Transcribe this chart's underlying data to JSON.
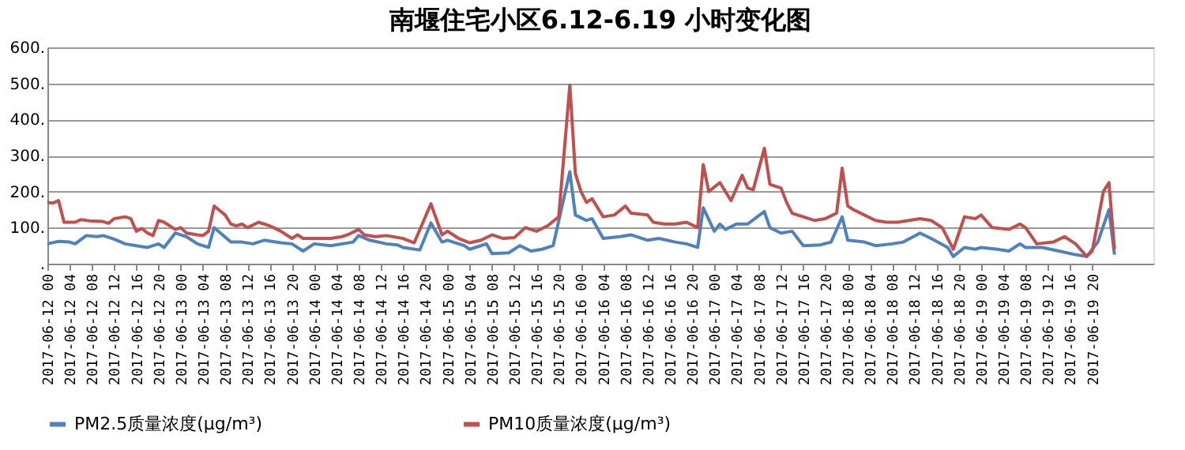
{
  "chart_data": {
    "type": "line",
    "title": "南堰住宅小区6.12-6.19 小时变化图",
    "xlim": [
      "2017-06-12T00:00",
      "2017-06-20T07:00"
    ],
    "xticks": [
      {
        "value": "2017-06-12T00:00",
        "label": "2017-06-12 00"
      },
      {
        "value": "2017-06-12T04:00",
        "label": "2017-06-12 04"
      },
      {
        "value": "2017-06-12T08:00",
        "label": "2017-06-12 08"
      },
      {
        "value": "2017-06-12T12:00",
        "label": "2017-06-12 12"
      },
      {
        "value": "2017-06-12T16:00",
        "label": "2017-06-12 16"
      },
      {
        "value": "2017-06-12T20:00",
        "label": "2017-06-12 20"
      },
      {
        "value": "2017-06-13T00:00",
        "label": "2017-06-13 00"
      },
      {
        "value": "2017-06-13T04:00",
        "label": "2017-06-13 04"
      },
      {
        "value": "2017-06-13T08:00",
        "label": "2017-06-13 08"
      },
      {
        "value": "2017-06-13T12:00",
        "label": "2017-06-13 12"
      },
      {
        "value": "2017-06-13T16:00",
        "label": "2017-06-13 16"
      },
      {
        "value": "2017-06-13T20:00",
        "label": "2017-06-13 20"
      },
      {
        "value": "2017-06-14T00:00",
        "label": "2017-06-14 00"
      },
      {
        "value": "2017-06-14T04:00",
        "label": "2017-06-14 04"
      },
      {
        "value": "2017-06-14T08:00",
        "label": "2017-06-14 08"
      },
      {
        "value": "2017-06-14T12:00",
        "label": "2017-06-14 12"
      },
      {
        "value": "2017-06-14T16:00",
        "label": "2017-06-14 16"
      },
      {
        "value": "2017-06-14T20:00",
        "label": "2017-06-14 20"
      },
      {
        "value": "2017-06-15T00:00",
        "label": "2017-06-15 00"
      },
      {
        "value": "2017-06-15T04:00",
        "label": "2017-06-15 04"
      },
      {
        "value": "2017-06-15T08:00",
        "label": "2017-06-15 08"
      },
      {
        "value": "2017-06-15T12:00",
        "label": "2017-06-15 12"
      },
      {
        "value": "2017-06-15T16:00",
        "label": "2017-06-15 16"
      },
      {
        "value": "2017-06-15T20:00",
        "label": "2017-06-15 20"
      },
      {
        "value": "2017-06-16T00:00",
        "label": "2017-06-16 00"
      },
      {
        "value": "2017-06-16T04:00",
        "label": "2017-06-16 04"
      },
      {
        "value": "2017-06-16T08:00",
        "label": "2017-06-16 08"
      },
      {
        "value": "2017-06-16T12:00",
        "label": "2017-06-16 12"
      },
      {
        "value": "2017-06-16T16:00",
        "label": "2017-06-16 16"
      },
      {
        "value": "2017-06-16T20:00",
        "label": "2017-06-16 20"
      },
      {
        "value": "2017-06-17T00:00",
        "label": "2017-06-17 00"
      },
      {
        "value": "2017-06-17T04:00",
        "label": "2017-06-17 04"
      },
      {
        "value": "2017-06-17T08:00",
        "label": "2017-06-17 08"
      },
      {
        "value": "2017-06-17T12:00",
        "label": "2017-06-17 12"
      },
      {
        "value": "2017-06-17T16:00",
        "label": "2017-06-17 16"
      },
      {
        "value": "2017-06-17T20:00",
        "label": "2017-06-17 20"
      },
      {
        "value": "2017-06-18T00:00",
        "label": "2017-06-18 00"
      },
      {
        "value": "2017-06-18T04:00",
        "label": "2017-06-18 04"
      },
      {
        "value": "2017-06-18T08:00",
        "label": "2017-06-18 08"
      },
      {
        "value": "2017-06-18T12:00",
        "label": "2017-06-18 12"
      },
      {
        "value": "2017-06-18T16:00",
        "label": "2017-06-18 16"
      },
      {
        "value": "2017-06-18T20:00",
        "label": "2017-06-18 20"
      },
      {
        "value": "2017-06-19T00:00",
        "label": "2017-06-19 00"
      },
      {
        "value": "2017-06-19T04:00",
        "label": "2017-06-19 04"
      },
      {
        "value": "2017-06-19T08:00",
        "label": "2017-06-19 08"
      },
      {
        "value": "2017-06-19T12:00",
        "label": "2017-06-19 12"
      },
      {
        "value": "2017-06-19T16:00",
        "label": "2017-06-19 16"
      },
      {
        "value": "2017-06-19T20:00",
        "label": "2017-06-19 20"
      }
    ],
    "ylim": [
      0,
      600
    ],
    "yticks": [
      {
        "value": 0,
        "label": "."
      },
      {
        "value": 100,
        "label": "100."
      },
      {
        "value": 200,
        "label": "200."
      },
      {
        "value": 300,
        "label": "300."
      },
      {
        "value": 400,
        "label": "400."
      },
      {
        "value": 500,
        "label": "500."
      },
      {
        "value": 600,
        "label": "600."
      }
    ],
    "grid": "y",
    "legend": "bottom",
    "line_style": "solid",
    "marker": "none",
    "series": [
      {
        "name": "PM2.5质量浓度(µg/m³)",
        "color": "#4f81bd",
        "x": [
          "2017-06-12T00:00",
          "2017-06-12T02:00",
          "2017-06-12T04:00",
          "2017-06-12T05:00",
          "2017-06-12T07:00",
          "2017-06-12T09:00",
          "2017-06-12T10:00",
          "2017-06-12T12:00",
          "2017-06-12T14:00",
          "2017-06-12T16:00",
          "2017-06-12T18:00",
          "2017-06-12T20:00",
          "2017-06-12T21:00",
          "2017-06-12T23:00",
          "2017-06-13T01:00",
          "2017-06-13T03:00",
          "2017-06-13T05:00",
          "2017-06-13T06:00",
          "2017-06-13T09:00",
          "2017-06-13T11:00",
          "2017-06-13T13:00",
          "2017-06-13T15:00",
          "2017-06-13T18:00",
          "2017-06-13T20:00",
          "2017-06-13T22:00",
          "2017-06-14T00:00",
          "2017-06-14T03:00",
          "2017-06-14T07:00",
          "2017-06-14T08:00",
          "2017-06-14T10:00",
          "2017-06-14T13:00",
          "2017-06-14T15:00",
          "2017-06-14T16:00",
          "2017-06-14T19:00",
          "2017-06-14T21:00",
          "2017-06-14T23:00",
          "2017-06-15T00:00",
          "2017-06-15T03:00",
          "2017-06-15T04:00",
          "2017-06-15T07:00",
          "2017-06-15T08:00",
          "2017-06-15T11:00",
          "2017-06-15T13:00",
          "2017-06-15T15:00",
          "2017-06-15T17:00",
          "2017-06-15T19:00",
          "2017-06-15T22:00",
          "2017-06-15T23:00",
          "2017-06-16T01:00",
          "2017-06-16T02:00",
          "2017-06-16T04:00",
          "2017-06-16T07:00",
          "2017-06-16T09:00",
          "2017-06-16T12:00",
          "2017-06-16T14:00",
          "2017-06-16T17:00",
          "2017-06-16T19:00",
          "2017-06-16T21:00",
          "2017-06-16T22:00",
          "2017-06-17T00:00",
          "2017-06-17T01:00",
          "2017-06-17T02:00",
          "2017-06-17T04:00",
          "2017-06-17T06:00",
          "2017-06-17T09:00",
          "2017-06-17T10:00",
          "2017-06-17T12:00",
          "2017-06-17T14:00",
          "2017-06-17T16:00",
          "2017-06-17T19:00",
          "2017-06-17T21:00",
          "2017-06-17T23:00",
          "2017-06-18T00:00",
          "2017-06-18T03:00",
          "2017-06-18T05:00",
          "2017-06-18T08:00",
          "2017-06-18T10:00",
          "2017-06-18T13:00",
          "2017-06-18T15:00",
          "2017-06-18T18:00",
          "2017-06-18T19:00",
          "2017-06-18T21:00",
          "2017-06-18T23:00",
          "2017-06-19T00:00",
          "2017-06-19T03:00",
          "2017-06-19T05:00",
          "2017-06-19T07:00",
          "2017-06-19T08:00",
          "2017-06-19T11:00",
          "2017-06-19T14:00",
          "2017-06-19T17:00",
          "2017-06-19T19:00",
          "2017-06-19T21:00",
          "2017-06-19T23:00",
          "2017-06-20T00:00"
        ],
        "values": [
          55,
          62,
          60,
          55,
          78,
          75,
          78,
          68,
          55,
          50,
          45,
          55,
          45,
          85,
          75,
          55,
          45,
          100,
          60,
          60,
          55,
          65,
          58,
          55,
          35,
          55,
          50,
          60,
          78,
          65,
          55,
          52,
          45,
          38,
          113,
          60,
          65,
          50,
          40,
          55,
          28,
          30,
          50,
          35,
          40,
          50,
          255,
          135,
          120,
          125,
          70,
          75,
          80,
          65,
          70,
          60,
          55,
          45,
          155,
          90,
          110,
          95,
          110,
          110,
          145,
          100,
          85,
          90,
          50,
          52,
          60,
          130,
          65,
          60,
          50,
          55,
          60,
          85,
          70,
          45,
          20,
          45,
          40,
          45,
          40,
          35,
          55,
          45,
          45,
          35,
          25,
          20,
          60,
          150,
          25
        ]
      },
      {
        "name": "PM10质量浓度(µg/m³)",
        "color": "#c0504d",
        "x": [
          "2017-06-12T00:00",
          "2017-06-12T01:00",
          "2017-06-12T02:00",
          "2017-06-12T03:00",
          "2017-06-12T05:00",
          "2017-06-12T06:00",
          "2017-06-12T08:00",
          "2017-06-12T10:00",
          "2017-06-12T11:00",
          "2017-06-12T12:00",
          "2017-06-12T14:00",
          "2017-06-12T15:00",
          "2017-06-12T16:00",
          "2017-06-12T17:00",
          "2017-06-12T18:00",
          "2017-06-12T19:00",
          "2017-06-12T20:00",
          "2017-06-12T21:00",
          "2017-06-12T23:00",
          "2017-06-13T00:00",
          "2017-06-13T01:00",
          "2017-06-13T03:00",
          "2017-06-13T04:00",
          "2017-06-13T05:00",
          "2017-06-13T06:00",
          "2017-06-13T08:00",
          "2017-06-13T09:00",
          "2017-06-13T10:00",
          "2017-06-13T11:00",
          "2017-06-13T12:00",
          "2017-06-13T14:00",
          "2017-06-13T15:00",
          "2017-06-13T16:00",
          "2017-06-13T18:00",
          "2017-06-13T19:00",
          "2017-06-13T20:00",
          "2017-06-13T21:00",
          "2017-06-13T22:00",
          "2017-06-14T00:00",
          "2017-06-14T03:00",
          "2017-06-14T05:00",
          "2017-06-14T06:00",
          "2017-06-14T08:00",
          "2017-06-14T09:00",
          "2017-06-14T11:00",
          "2017-06-14T13:00",
          "2017-06-14T16:00",
          "2017-06-14T18:00",
          "2017-06-14T21:00",
          "2017-06-14T23:00",
          "2017-06-15T00:00",
          "2017-06-15T02:00",
          "2017-06-15T04:00",
          "2017-06-15T06:00",
          "2017-06-15T08:00",
          "2017-06-15T10:00",
          "2017-06-15T12:00",
          "2017-06-15T14:00",
          "2017-06-15T16:00",
          "2017-06-15T18:00",
          "2017-06-15T20:00",
          "2017-06-15T22:00",
          "2017-06-15T23:00",
          "2017-06-16T00:00",
          "2017-06-16T01:00",
          "2017-06-16T02:00",
          "2017-06-16T04:00",
          "2017-06-16T06:00",
          "2017-06-16T08:00",
          "2017-06-16T09:00",
          "2017-06-16T12:00",
          "2017-06-16T13:00",
          "2017-06-16T15:00",
          "2017-06-16T17:00",
          "2017-06-16T19:00",
          "2017-06-16T21:00",
          "2017-06-16T22:00",
          "2017-06-16T23:00",
          "2017-06-17T01:00",
          "2017-06-17T02:00",
          "2017-06-17T03:00",
          "2017-06-17T05:00",
          "2017-06-17T06:00",
          "2017-06-17T07:00",
          "2017-06-17T09:00",
          "2017-06-17T10:00",
          "2017-06-17T12:00",
          "2017-06-17T13:00",
          "2017-06-17T14:00",
          "2017-06-17T16:00",
          "2017-06-17T18:00",
          "2017-06-17T20:00",
          "2017-06-17T22:00",
          "2017-06-17T23:00",
          "2017-06-18T00:00",
          "2017-06-18T01:00",
          "2017-06-18T03:00",
          "2017-06-18T05:00",
          "2017-06-18T07:00",
          "2017-06-18T09:00",
          "2017-06-18T11:00",
          "2017-06-18T13:00",
          "2017-06-18T15:00",
          "2017-06-18T17:00",
          "2017-06-18T19:00",
          "2017-06-18T21:00",
          "2017-06-18T23:00",
          "2017-06-19T00:00",
          "2017-06-19T02:00",
          "2017-06-19T05:00",
          "2017-06-19T07:00",
          "2017-06-19T08:00",
          "2017-06-19T10:00",
          "2017-06-19T13:00",
          "2017-06-19T15:00",
          "2017-06-19T17:00",
          "2017-06-19T19:00",
          "2017-06-19T20:00",
          "2017-06-19T22:00",
          "2017-06-19T23:00",
          "2017-06-20T00:00"
        ],
        "values": [
          170,
          168,
          175,
          115,
          115,
          122,
          118,
          117,
          112,
          125,
          130,
          125,
          90,
          98,
          85,
          78,
          120,
          115,
          95,
          100,
          85,
          80,
          78,
          90,
          160,
          135,
          110,
          105,
          110,
          100,
          115,
          110,
          105,
          90,
          80,
          70,
          80,
          70,
          70,
          70,
          75,
          80,
          95,
          80,
          75,
          78,
          70,
          58,
          166,
          80,
          90,
          70,
          58,
          65,
          80,
          70,
          72,
          100,
          90,
          105,
          130,
          495,
          250,
          200,
          170,
          180,
          130,
          135,
          160,
          140,
          135,
          115,
          110,
          110,
          115,
          100,
          275,
          200,
          225,
          200,
          175,
          245,
          210,
          205,
          320,
          220,
          210,
          170,
          140,
          130,
          120,
          125,
          140,
          265,
          160,
          150,
          135,
          120,
          115,
          115,
          120,
          125,
          120,
          100,
          40,
          130,
          125,
          135,
          100,
          95,
          110,
          100,
          55,
          60,
          75,
          55,
          20,
          35,
          200,
          225,
          40
        ]
      }
    ]
  }
}
